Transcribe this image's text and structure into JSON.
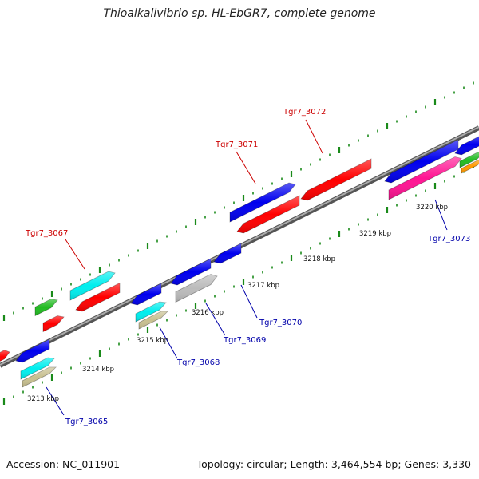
{
  "title": "Thioalkalivibrio sp. HL-EbGR7, complete genome",
  "footer": {
    "accession": "Accession: NC_011901",
    "topology": "Topology: circular; Length: 3,464,554 bp; Genes: 3,330"
  },
  "colors": {
    "forward_label": "#cc0000",
    "reverse_label": "#0000aa",
    "backbone": "#777777",
    "tick": "#1a8a1a"
  },
  "scale_labels": [
    "3213 kbp",
    "3214 kbp",
    "3215 kbp",
    "3216 kbp",
    "3217 kbp",
    "3218 kbp",
    "3219 kbp",
    "3220 kbp"
  ],
  "forward_labels": [
    "Tgr7_3067",
    "Tgr7_3071",
    "Tgr7_3072"
  ],
  "reverse_labels": [
    "Tgr7_3065",
    "Tgr7_3068",
    "Tgr7_3069",
    "Tgr7_3070",
    "Tgr7_3073"
  ],
  "feature_colors": [
    "#ff0000",
    "#0000ee",
    "#00eeee",
    "#22bb22",
    "#bbbbbb",
    "#c8c090",
    "#ff1493",
    "#ff9900"
  ]
}
